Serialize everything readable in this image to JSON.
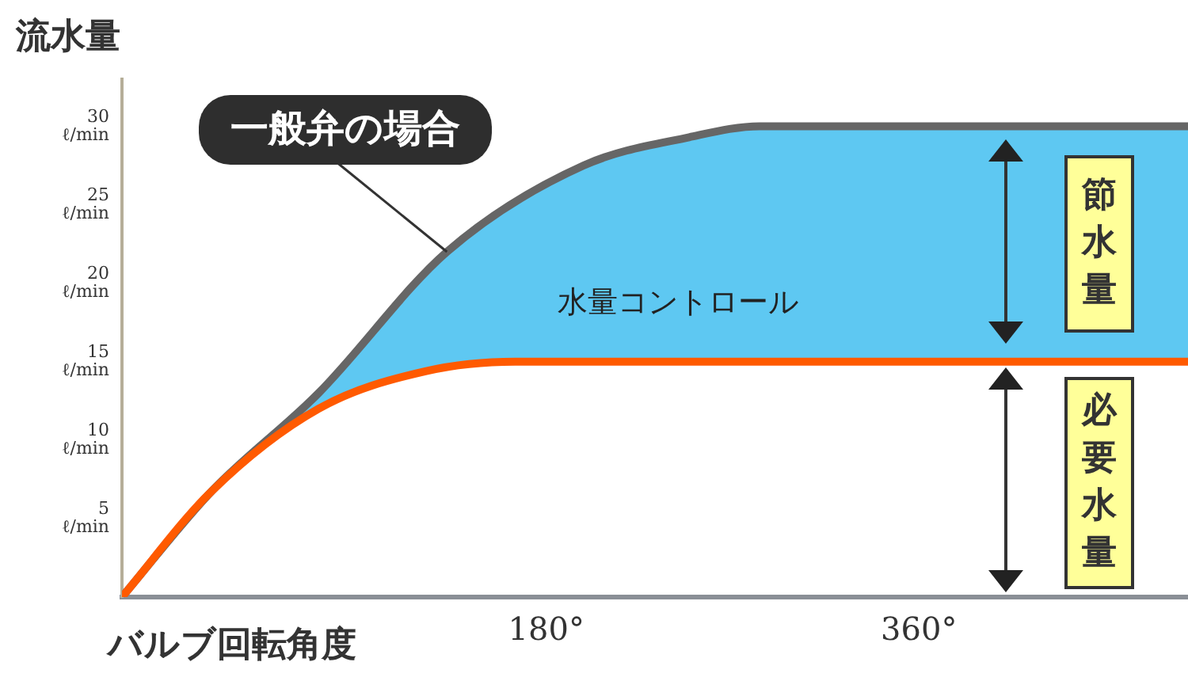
{
  "chart_data": {
    "type": "line",
    "xlabel": "バルブ回転角度",
    "ylabel": "流水量",
    "xlim": [
      -25,
      490
    ],
    "xticks": [
      {
        "value": 180,
        "label": "180°"
      },
      {
        "value": 360,
        "label": "360°"
      }
    ],
    "ylim": [
      0,
      33
    ],
    "yticks": [
      {
        "value": 5,
        "label": "5\nℓ/min"
      },
      {
        "value": 10,
        "label": "10\nℓ/min"
      },
      {
        "value": 15,
        "label": "15\nℓ/min"
      },
      {
        "value": 20,
        "label": "20\nℓ/min"
      },
      {
        "value": 25,
        "label": "25\nℓ/min"
      },
      {
        "value": 30,
        "label": "30\nℓ/min"
      }
    ],
    "grid": false,
    "legend": false,
    "marker": "none",
    "line_style": "solid",
    "series": [
      {
        "color": "#ff5a00",
        "x": [
          -25,
          18,
          70,
          122,
          165,
          490
        ],
        "values": [
          0,
          6.7,
          12,
          14.4,
          15,
          15
        ]
      },
      {
        "name": "一般弁の場合",
        "color": "#666666",
        "x": [
          -25,
          18,
          70,
          132,
          198,
          249,
          283,
          490
        ],
        "values": [
          0,
          6.7,
          13,
          22,
          27.5,
          29.3,
          30,
          30
        ]
      }
    ],
    "annotations": [
      "水量コントロール",
      "節水量",
      "必要水量"
    ]
  }
}
